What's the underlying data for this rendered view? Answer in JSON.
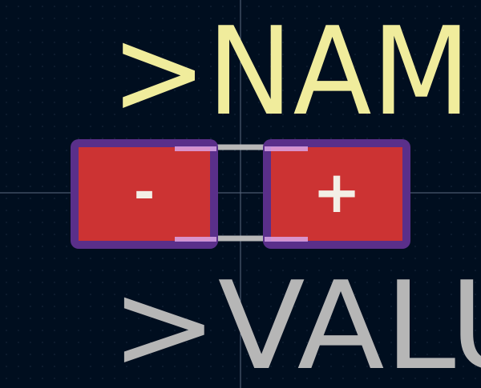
{
  "footprint_view": {
    "colors": {
      "background": "#000e1f",
      "grid_dot": "#1a2a40",
      "crosshair": "#5c6a80",
      "silkscreen_ref": "#f0ec9c",
      "silkscreen_value": "#b6b6b6",
      "courtyard": "#b8b8b8",
      "pad_fill": "#cc3333",
      "pad_outline": "#5a2f8a",
      "pad_outline_light": "#d9a5e8",
      "pad_label": "#f3efe6"
    },
    "ref_text": ">NAME",
    "value_text": ">VALUE",
    "pads": [
      {
        "label": "-",
        "icon": "minus-sign"
      },
      {
        "label": "+",
        "icon": "plus-sign"
      }
    ]
  }
}
